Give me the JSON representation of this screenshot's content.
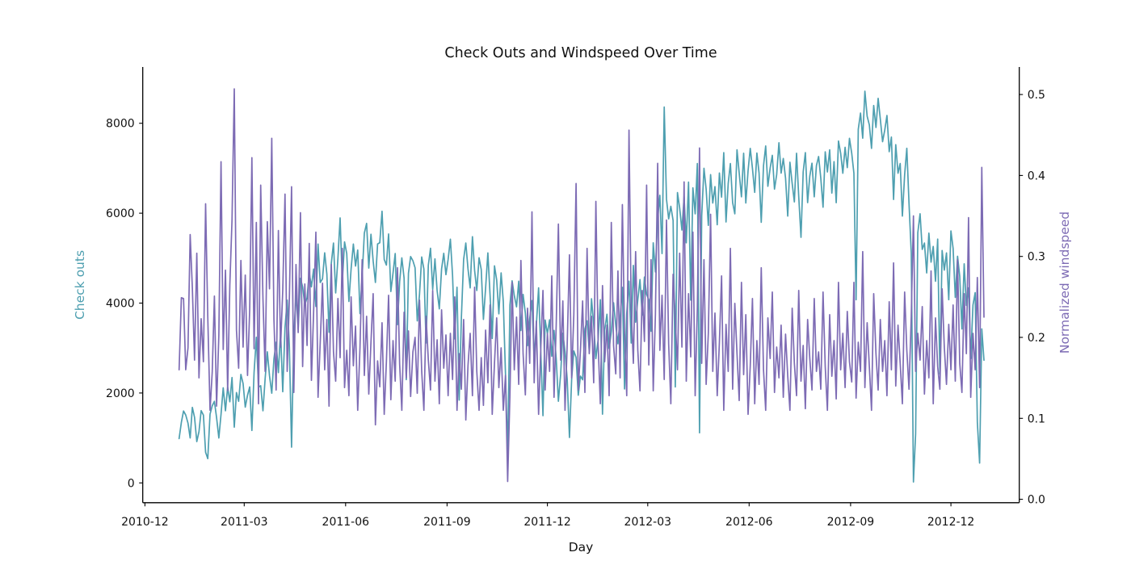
{
  "figure": {
    "title": "Check Outs and Windspeed Over Time",
    "x_axis": {
      "label": "Day",
      "tick_labels": [
        "2010-12",
        "2011-03",
        "2011-06",
        "2011-09",
        "2011-12",
        "2012-03",
        "2012-06",
        "2012-09",
        "2012-12"
      ]
    },
    "y_axis_left": {
      "label": "Check outs",
      "tick_labels": [
        "0",
        "2000",
        "4000",
        "6000",
        "8000"
      ],
      "color": "#4e9fb0"
    },
    "y_axis_right": {
      "label": "Normalized windspeed",
      "tick_labels": [
        "0.0",
        "0.1",
        "0.2",
        "0.3",
        "0.4",
        "0.5"
      ],
      "color": "#7d6bb4"
    }
  },
  "chart_data": {
    "type": "line",
    "title": "Check Outs and Windspeed Over Time",
    "xlabel": "Day",
    "grid": false,
    "legend": "none",
    "x_axis_range": [
      "2010-11-29",
      "2013-02-01"
    ],
    "x_tick_labels": [
      "2010-12",
      "2011-03",
      "2011-06",
      "2011-09",
      "2011-12",
      "2012-03",
      "2012-06",
      "2012-09",
      "2012-12"
    ],
    "x_start": "2011-01-01",
    "x_end": "2012-12-31",
    "x_step_days": 2,
    "series": [
      {
        "name": "Check outs",
        "axis": "left",
        "color": "#4e9fb0",
        "ylim": [
          -440,
          9252
        ],
        "yticks": [
          0,
          2000,
          4000,
          6000,
          8000
        ],
        "values": [
          985,
          1349,
          1600,
          1510,
          1330,
          1000,
          1680,
          1460,
          920,
          1140,
          1608,
          1510,
          680,
          540,
          1530,
          1715,
          1815,
          1450,
          1000,
          1526,
          2115,
          1605,
          2135,
          1805,
          2345,
          1240,
          2010,
          1815,
          2415,
          2210,
          1685,
          1950,
          2134,
          1167,
          2455,
          3239,
          2132,
          2162,
          1605,
          2320,
          2915,
          2385,
          1995,
          2765,
          3129,
          2455,
          3372,
          2028,
          3456,
          4066,
          3031,
          795,
          3243,
          4232,
          3425,
          4553,
          4362,
          3958,
          4123,
          4675,
          4362,
          4758,
          3925,
          5312,
          4458,
          4541,
          5119,
          4649,
          3351,
          4881,
          5336,
          4226,
          4998,
          5895,
          4460,
          5362,
          5102,
          4036,
          4758,
          5315,
          4825,
          5180,
          3767,
          4602,
          5557,
          5772,
          4780,
          5531,
          4940,
          4459,
          5315,
          5342,
          6043,
          4972,
          4845,
          5538,
          4258,
          4664,
          5102,
          3523,
          4480,
          5005,
          4555,
          2298,
          4665,
          5034,
          4942,
          4785,
          3606,
          4198,
          5026,
          4758,
          3112,
          4841,
          5219,
          4305,
          4985,
          4275,
          3873,
          4758,
          5107,
          4633,
          4969,
          5423,
          4614,
          3204,
          4352,
          1842,
          3666,
          4970,
          5336,
          4763,
          4338,
          5478,
          4725,
          4280,
          5010,
          4748,
          3637,
          4332,
          5117,
          4185,
          3214,
          4828,
          4515,
          3761,
          4672,
          4035,
          2424,
          627,
          3958,
          4496,
          4167,
          3915,
          4486,
          3389,
          4195,
          3775,
          3053,
          3654,
          4058,
          2765,
          3510,
          4339,
          2914,
          1495,
          3623,
          3322,
          3629,
          2817,
          3392,
          2765,
          1817,
          2418,
          3332,
          2923,
          2311,
          1011,
          2302,
          2935,
          2792,
          1951,
          2376,
          2294,
          3425,
          3605,
          2933,
          4097,
          3520,
          2765,
          3187,
          4075,
          1529,
          3403,
          3750,
          2989,
          3364,
          4007,
          3510,
          3095,
          3667,
          4350,
          2089,
          3768,
          4486,
          3112,
          4839,
          3575,
          4075,
          4525,
          3735,
          4580,
          4195,
          4075,
          3374,
          5342,
          4694,
          5877,
          6398,
          5102,
          8362,
          6312,
          5875,
          6153,
          5835,
          2134,
          6458,
          6118,
          5625,
          6370,
          5342,
          6691,
          4066,
          6565,
          5986,
          7105,
          1115,
          5936,
          6998,
          6536,
          5729,
          6857,
          6227,
          6591,
          5743,
          6894,
          6357,
          7347,
          5805,
          6660,
          7105,
          6234,
          5986,
          7410,
          6896,
          6365,
          7333,
          6227,
          6949,
          7442,
          6998,
          6464,
          7338,
          6891,
          5798,
          7055,
          7494,
          6598,
          7001,
          7286,
          6536,
          6857,
          7568,
          6891,
          7216,
          6778,
          5936,
          7133,
          6660,
          6252,
          7332,
          6370,
          5463,
          6915,
          7347,
          6236,
          6824,
          7112,
          6365,
          7058,
          7261,
          6784,
          6133,
          7365,
          6917,
          7410,
          6447,
          7148,
          6234,
          7605,
          7333,
          6889,
          7465,
          7013,
          7665,
          7333,
          6889,
          4073,
          7865,
          8227,
          7669,
          8714,
          8156,
          7965,
          7442,
          8395,
          7907,
          8555,
          8090,
          7591,
          7850,
          8173,
          7368,
          7691,
          6305,
          7525,
          6889,
          7105,
          5936,
          6853,
          7444,
          6227,
          5115,
          22,
          1096,
          5566,
          5986,
          5195,
          5336,
          4672,
          5557,
          4910,
          5260,
          4486,
          5424,
          2425,
          5170,
          4732,
          5117,
          4075,
          5605,
          5217,
          4128,
          5041,
          4595,
          3425,
          4875,
          3950,
          4339,
          2765,
          3958,
          4232,
          1349,
          441,
          3425,
          2729
        ]
      },
      {
        "name": "Normalized windspeed",
        "axis": "right",
        "color": "#7d6bb4",
        "ylim": [
          -0.0042,
          0.534
        ],
        "yticks": [
          0.0,
          0.1,
          0.2,
          0.3,
          0.4,
          0.5
        ],
        "values": [
          0.16,
          0.249,
          0.248,
          0.16,
          0.187,
          0.327,
          0.261,
          0.172,
          0.304,
          0.15,
          0.223,
          0.17,
          0.365,
          0.225,
          0.11,
          0.157,
          0.251,
          0.115,
          0.203,
          0.417,
          0.185,
          0.283,
          0.134,
          0.265,
          0.345,
          0.507,
          0.209,
          0.162,
          0.295,
          0.188,
          0.277,
          0.153,
          0.235,
          0.422,
          0.186,
          0.342,
          0.118,
          0.388,
          0.248,
          0.158,
          0.343,
          0.26,
          0.446,
          0.222,
          0.135,
          0.332,
          0.188,
          0.258,
          0.377,
          0.158,
          0.249,
          0.386,
          0.132,
          0.29,
          0.206,
          0.354,
          0.164,
          0.266,
          0.19,
          0.316,
          0.147,
          0.231,
          0.33,
          0.126,
          0.194,
          0.267,
          0.16,
          0.222,
          0.115,
          0.29,
          0.182,
          0.146,
          0.248,
          0.175,
          0.31,
          0.138,
          0.184,
          0.128,
          0.25,
          0.165,
          0.214,
          0.11,
          0.187,
          0.296,
          0.153,
          0.226,
          0.13,
          0.194,
          0.254,
          0.092,
          0.171,
          0.139,
          0.218,
          0.105,
          0.17,
          0.252,
          0.123,
          0.196,
          0.146,
          0.286,
          0.167,
          0.11,
          0.231,
          0.15,
          0.208,
          0.127,
          0.182,
          0.2,
          0.131,
          0.246,
          0.158,
          0.11,
          0.226,
          0.172,
          0.135,
          0.258,
          0.146,
          0.197,
          0.118,
          0.234,
          0.162,
          0.203,
          0.128,
          0.205,
          0.148,
          0.25,
          0.11,
          0.18,
          0.136,
          0.222,
          0.098,
          0.165,
          0.205,
          0.128,
          0.262,
          0.158,
          0.11,
          0.175,
          0.116,
          0.209,
          0.144,
          0.24,
          0.105,
          0.168,
          0.224,
          0.138,
          0.187,
          0.11,
          0.153,
          0.022,
          0.128,
          0.268,
          0.16,
          0.225,
          0.142,
          0.295,
          0.18,
          0.129,
          0.236,
          0.168,
          0.355,
          0.144,
          0.22,
          0.105,
          0.186,
          0.258,
          0.135,
          0.205,
          0.158,
          0.276,
          0.126,
          0.215,
          0.34,
          0.172,
          0.245,
          0.11,
          0.191,
          0.302,
          0.15,
          0.228,
          0.39,
          0.135,
          0.184,
          0.245,
          0.132,
          0.31,
          0.18,
          0.226,
          0.144,
          0.368,
          0.192,
          0.118,
          0.264,
          0.17,
          0.215,
          0.128,
          0.342,
          0.19,
          0.155,
          0.282,
          0.15,
          0.364,
          0.205,
          0.128,
          0.456,
          0.236,
          0.168,
          0.306,
          0.184,
          0.134,
          0.258,
          0.195,
          0.388,
          0.166,
          0.296,
          0.134,
          0.228,
          0.415,
          0.184,
          0.252,
          0.148,
          0.345,
          0.192,
          0.118,
          0.278,
          0.224,
          0.16,
          0.304,
          0.188,
          0.392,
          0.146,
          0.254,
          0.176,
          0.33,
          0.128,
          0.236,
          0.434,
          0.168,
          0.296,
          0.142,
          0.205,
          0.352,
          0.158,
          0.23,
          0.128,
          0.194,
          0.276,
          0.11,
          0.216,
          0.158,
          0.31,
          0.136,
          0.242,
          0.18,
          0.122,
          0.268,
          0.154,
          0.228,
          0.105,
          0.165,
          0.248,
          0.118,
          0.196,
          0.142,
          0.286,
          0.16,
          0.11,
          0.224,
          0.174,
          0.256,
          0.132,
          0.188,
          0.15,
          0.215,
          0.126,
          0.204,
          0.152,
          0.11,
          0.236,
          0.168,
          0.128,
          0.258,
          0.146,
          0.19,
          0.112,
          0.222,
          0.174,
          0.135,
          0.248,
          0.158,
          0.182,
          0.136,
          0.256,
          0.164,
          0.11,
          0.228,
          0.152,
          0.196,
          0.124,
          0.268,
          0.16,
          0.205,
          0.138,
          0.232,
          0.17,
          0.145,
          0.268,
          0.125,
          0.194,
          0.158,
          0.306,
          0.138,
          0.218,
          0.164,
          0.11,
          0.254,
          0.18,
          0.135,
          0.222,
          0.158,
          0.196,
          0.128,
          0.244,
          0.16,
          0.292,
          0.14,
          0.215,
          0.168,
          0.118,
          0.256,
          0.184,
          0.136,
          0.226,
          0.35,
          0.158,
          0.205,
          0.172,
          0.238,
          0.13,
          0.196,
          0.15,
          0.282,
          0.118,
          0.224,
          0.164,
          0.136,
          0.26,
          0.188,
          0.142,
          0.216,
          0.16,
          0.24,
          0.146,
          0.296,
          0.168,
          0.132,
          0.254,
          0.18,
          0.348,
          0.126,
          0.205,
          0.16,
          0.274,
          0.138,
          0.41,
          0.225
        ]
      }
    ]
  }
}
